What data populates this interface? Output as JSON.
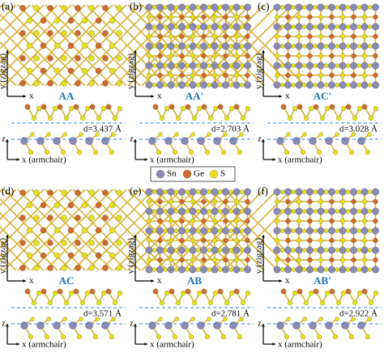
{
  "panels": [
    {
      "label": "(a)",
      "stacking": "AA",
      "distance": "d=3.437 Å"
    },
    {
      "label": "(b)",
      "stacking": "AA'",
      "distance": "d=2.703 Å"
    },
    {
      "label": "(c)",
      "stacking": "AC'",
      "distance": "d=3.028 Å"
    },
    {
      "label": "(d)",
      "stacking": "AC",
      "distance": "d=3.571 Å"
    },
    {
      "label": "(e)",
      "stacking": "AB",
      "distance": "d=2.781 Å"
    },
    {
      "label": "(f)",
      "stacking": "AB'",
      "distance": "d=2.922 Å"
    }
  ],
  "axes": {
    "top_y": "y (zigzag)",
    "top_x": "x",
    "side_z": "z",
    "side_x": "x (armchair)"
  },
  "legend": [
    {
      "name": "Sn"
    },
    {
      "name": "Ge"
    },
    {
      "name": "S"
    }
  ]
}
